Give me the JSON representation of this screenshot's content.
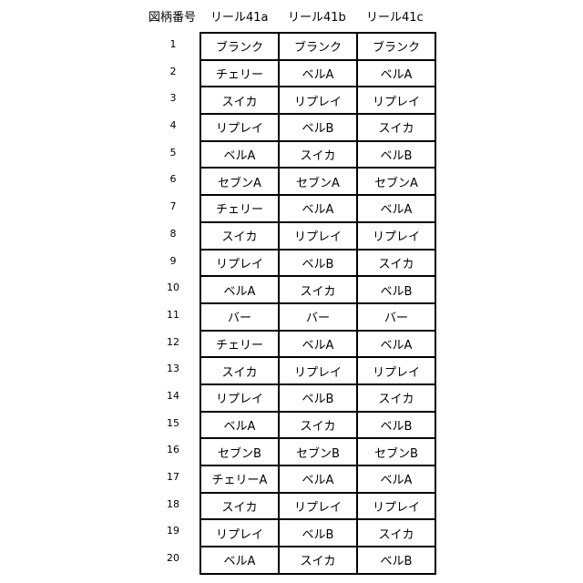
{
  "headers": [
    "図柄番号",
    "リール41a",
    "リール41b",
    "リール41c"
  ],
  "rows": [
    {
      "no": "1",
      "cells": [
        "ブランク",
        "ブランク",
        "ブランク"
      ]
    },
    {
      "no": "2",
      "cells": [
        "チェリー",
        "ベルA",
        "ベルA"
      ]
    },
    {
      "no": "3",
      "cells": [
        "スイカ",
        "リプレイ",
        "リプレイ"
      ]
    },
    {
      "no": "4",
      "cells": [
        "リプレイ",
        "ベルB",
        "スイカ"
      ]
    },
    {
      "no": "5",
      "cells": [
        "ベルA",
        "スイカ",
        "ベルB"
      ]
    },
    {
      "no": "6",
      "cells": [
        "セブンA",
        "セブンA",
        "セブンA"
      ]
    },
    {
      "no": "7",
      "cells": [
        "チェリー",
        "ベルA",
        "ベルA"
      ]
    },
    {
      "no": "8",
      "cells": [
        "スイカ",
        "リプレイ",
        "リプレイ"
      ]
    },
    {
      "no": "9",
      "cells": [
        "リプレイ",
        "ベルB",
        "スイカ"
      ]
    },
    {
      "no": "10",
      "cells": [
        "ベルA",
        "スイカ",
        "ベルB"
      ]
    },
    {
      "no": "11",
      "cells": [
        "バー",
        "バー",
        "バー"
      ]
    },
    {
      "no": "12",
      "cells": [
        "チェリー",
        "ベルA",
        "ベルA"
      ]
    },
    {
      "no": "13",
      "cells": [
        "スイカ",
        "リプレイ",
        "リプレイ"
      ]
    },
    {
      "no": "14",
      "cells": [
        "リプレイ",
        "ベルB",
        "スイカ"
      ]
    },
    {
      "no": "15",
      "cells": [
        "ベルA",
        "スイカ",
        "ベルB"
      ]
    },
    {
      "no": "16",
      "cells": [
        "セブンB",
        "セブンB",
        "セブンB"
      ]
    },
    {
      "no": "17",
      "cells": [
        "チェリーA",
        "ベルA",
        "ベルA"
      ]
    },
    {
      "no": "18",
      "cells": [
        "スイカ",
        "リプレイ",
        "リプレイ"
      ]
    },
    {
      "no": "19",
      "cells": [
        "リプレイ",
        "ベルB",
        "スイカ"
      ]
    },
    {
      "no": "20",
      "cells": [
        "ベルA",
        "スイカ",
        "ベルB"
      ]
    }
  ]
}
